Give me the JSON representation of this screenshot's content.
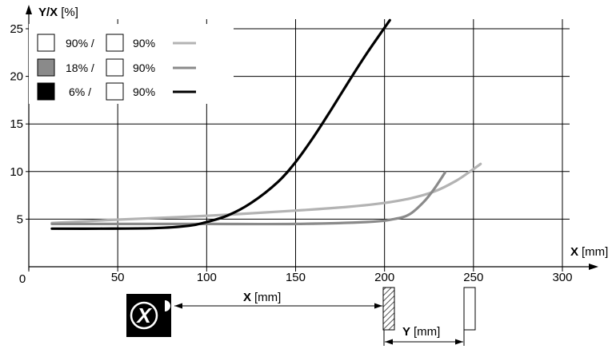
{
  "chart_data": {
    "type": "line",
    "title": "",
    "xlabel": {
      "symbol": "X",
      "unit": "[mm]"
    },
    "ylabel": {
      "symbol": "Y/X",
      "unit": "[%]"
    },
    "xlim": [
      0,
      300
    ],
    "ylim": [
      0,
      25
    ],
    "x_ticks": [
      0,
      50,
      100,
      150,
      200,
      250,
      300
    ],
    "x_tick_labels": [
      "0",
      "50",
      "100",
      "150",
      "200",
      "250",
      "300"
    ],
    "y_ticks": [
      5,
      10,
      15,
      20,
      25
    ],
    "y_tick_labels": [
      "5",
      "10",
      "15",
      "20",
      "25"
    ],
    "grid": true,
    "legend_position": "top-left",
    "series": [
      {
        "name": "90% / 90%",
        "legend_left": "90% /",
        "legend_right": "90%",
        "left_fill": "#ffffff",
        "right_fill": "#ffffff",
        "color": "#b3b3b3",
        "points": [
          [
            13,
            4.6
          ],
          [
            50,
            4.95
          ],
          [
            100,
            5.35
          ],
          [
            150,
            5.9
          ],
          [
            180,
            6.3
          ],
          [
            200,
            6.7
          ],
          [
            215,
            7.2
          ],
          [
            228,
            7.9
          ],
          [
            240,
            9.0
          ],
          [
            248,
            10.0
          ],
          [
            254,
            10.8
          ]
        ]
      },
      {
        "name": "18% / 90%",
        "legend_left": "18% /",
        "legend_right": "90%",
        "left_fill": "#8a8a8a",
        "right_fill": "#ffffff",
        "color": "#8a8a8a",
        "points": [
          [
            13,
            4.5
          ],
          [
            50,
            4.5
          ],
          [
            100,
            4.5
          ],
          [
            150,
            4.5
          ],
          [
            190,
            4.7
          ],
          [
            205,
            5.0
          ],
          [
            214,
            5.5
          ],
          [
            222,
            6.8
          ],
          [
            228,
            8.2
          ],
          [
            234,
            9.9
          ]
        ]
      },
      {
        "name": "6% / 90%",
        "legend_left": "6% /",
        "legend_right": "90%",
        "left_fill": "#000000",
        "right_fill": "#ffffff",
        "color": "#000000",
        "points": [
          [
            13,
            4.0
          ],
          [
            40,
            4.0
          ],
          [
            70,
            4.05
          ],
          [
            90,
            4.3
          ],
          [
            100,
            4.7
          ],
          [
            112,
            5.4
          ],
          [
            125,
            6.7
          ],
          [
            140,
            8.9
          ],
          [
            150,
            11.0
          ],
          [
            160,
            13.6
          ],
          [
            170,
            16.5
          ],
          [
            180,
            19.5
          ],
          [
            190,
            22.4
          ],
          [
            197,
            24.3
          ],
          [
            203,
            25.9
          ]
        ]
      }
    ]
  },
  "diagram": {
    "x_label": {
      "symbol": "X",
      "unit": "[mm]"
    },
    "y_label": {
      "symbol": "Y",
      "unit": "[mm]"
    },
    "sensor_icon": "x-logo-sensor-icon"
  }
}
